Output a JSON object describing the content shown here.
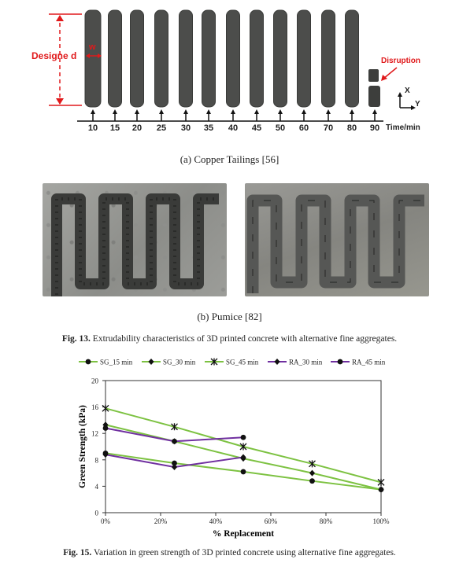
{
  "figure13": {
    "panel_a": {
      "designed_label": "Designe d",
      "w_label": "w",
      "disruption_label": "Disruption",
      "time_labels": [
        "10",
        "15",
        "20",
        "25",
        "30",
        "35",
        "40",
        "45",
        "50",
        "60",
        "70",
        "80",
        "90"
      ],
      "time_unit": "Time/min",
      "axis_x": "X",
      "axis_y": "Y",
      "caption": "(a)  Copper Tailings [56]"
    },
    "panel_b": {
      "caption": "(b)  Pumice [82]"
    },
    "caption_bold": "Fig. 13.",
    "caption_text": " Extrudability characteristics of 3D printed concrete with alternative fine aggregates."
  },
  "figure15": {
    "caption_bold": "Fig. 15.",
    "caption_text": " Variation in green strength of 3D printed concrete using alternative fine aggregates.",
    "colors": {
      "SG": "#7dc242",
      "RA": "#7030a0",
      "marker": "#111111"
    }
  },
  "chart_data": {
    "type": "line",
    "xlabel": "% Replacement",
    "ylabel": "Green Strength (kPa)",
    "x_ticks": [
      "0%",
      "20%",
      "40%",
      "60%",
      "80%",
      "100%"
    ],
    "y_ticks": [
      0,
      4,
      8,
      12,
      16,
      20
    ],
    "xlim": [
      0,
      100
    ],
    "ylim": [
      0,
      20
    ],
    "grid": false,
    "legend": "top",
    "series": [
      {
        "name": "SG_15 min",
        "marker": "circle",
        "color_key": "SG",
        "x": [
          0,
          25,
          50,
          75,
          100
        ],
        "y": [
          9.0,
          7.5,
          6.2,
          4.8,
          3.5
        ]
      },
      {
        "name": "SG_30 min",
        "marker": "diamond",
        "color_key": "SG",
        "x": [
          0,
          25,
          50,
          75,
          100
        ],
        "y": [
          13.3,
          10.8,
          8.2,
          6.0,
          3.5
        ]
      },
      {
        "name": "SG_45 min",
        "marker": "star",
        "color_key": "SG",
        "x": [
          0,
          25,
          50,
          75,
          100
        ],
        "y": [
          15.8,
          13.0,
          10.0,
          7.4,
          4.6
        ]
      },
      {
        "name": "RA_30 min",
        "marker": "diamond",
        "color_key": "RA",
        "x": [
          0,
          25,
          50
        ],
        "y": [
          8.8,
          6.9,
          8.4
        ]
      },
      {
        "name": "RA_45 min",
        "marker": "circle",
        "color_key": "RA",
        "x": [
          0,
          25,
          50
        ],
        "y": [
          12.8,
          10.8,
          11.4
        ]
      }
    ]
  }
}
